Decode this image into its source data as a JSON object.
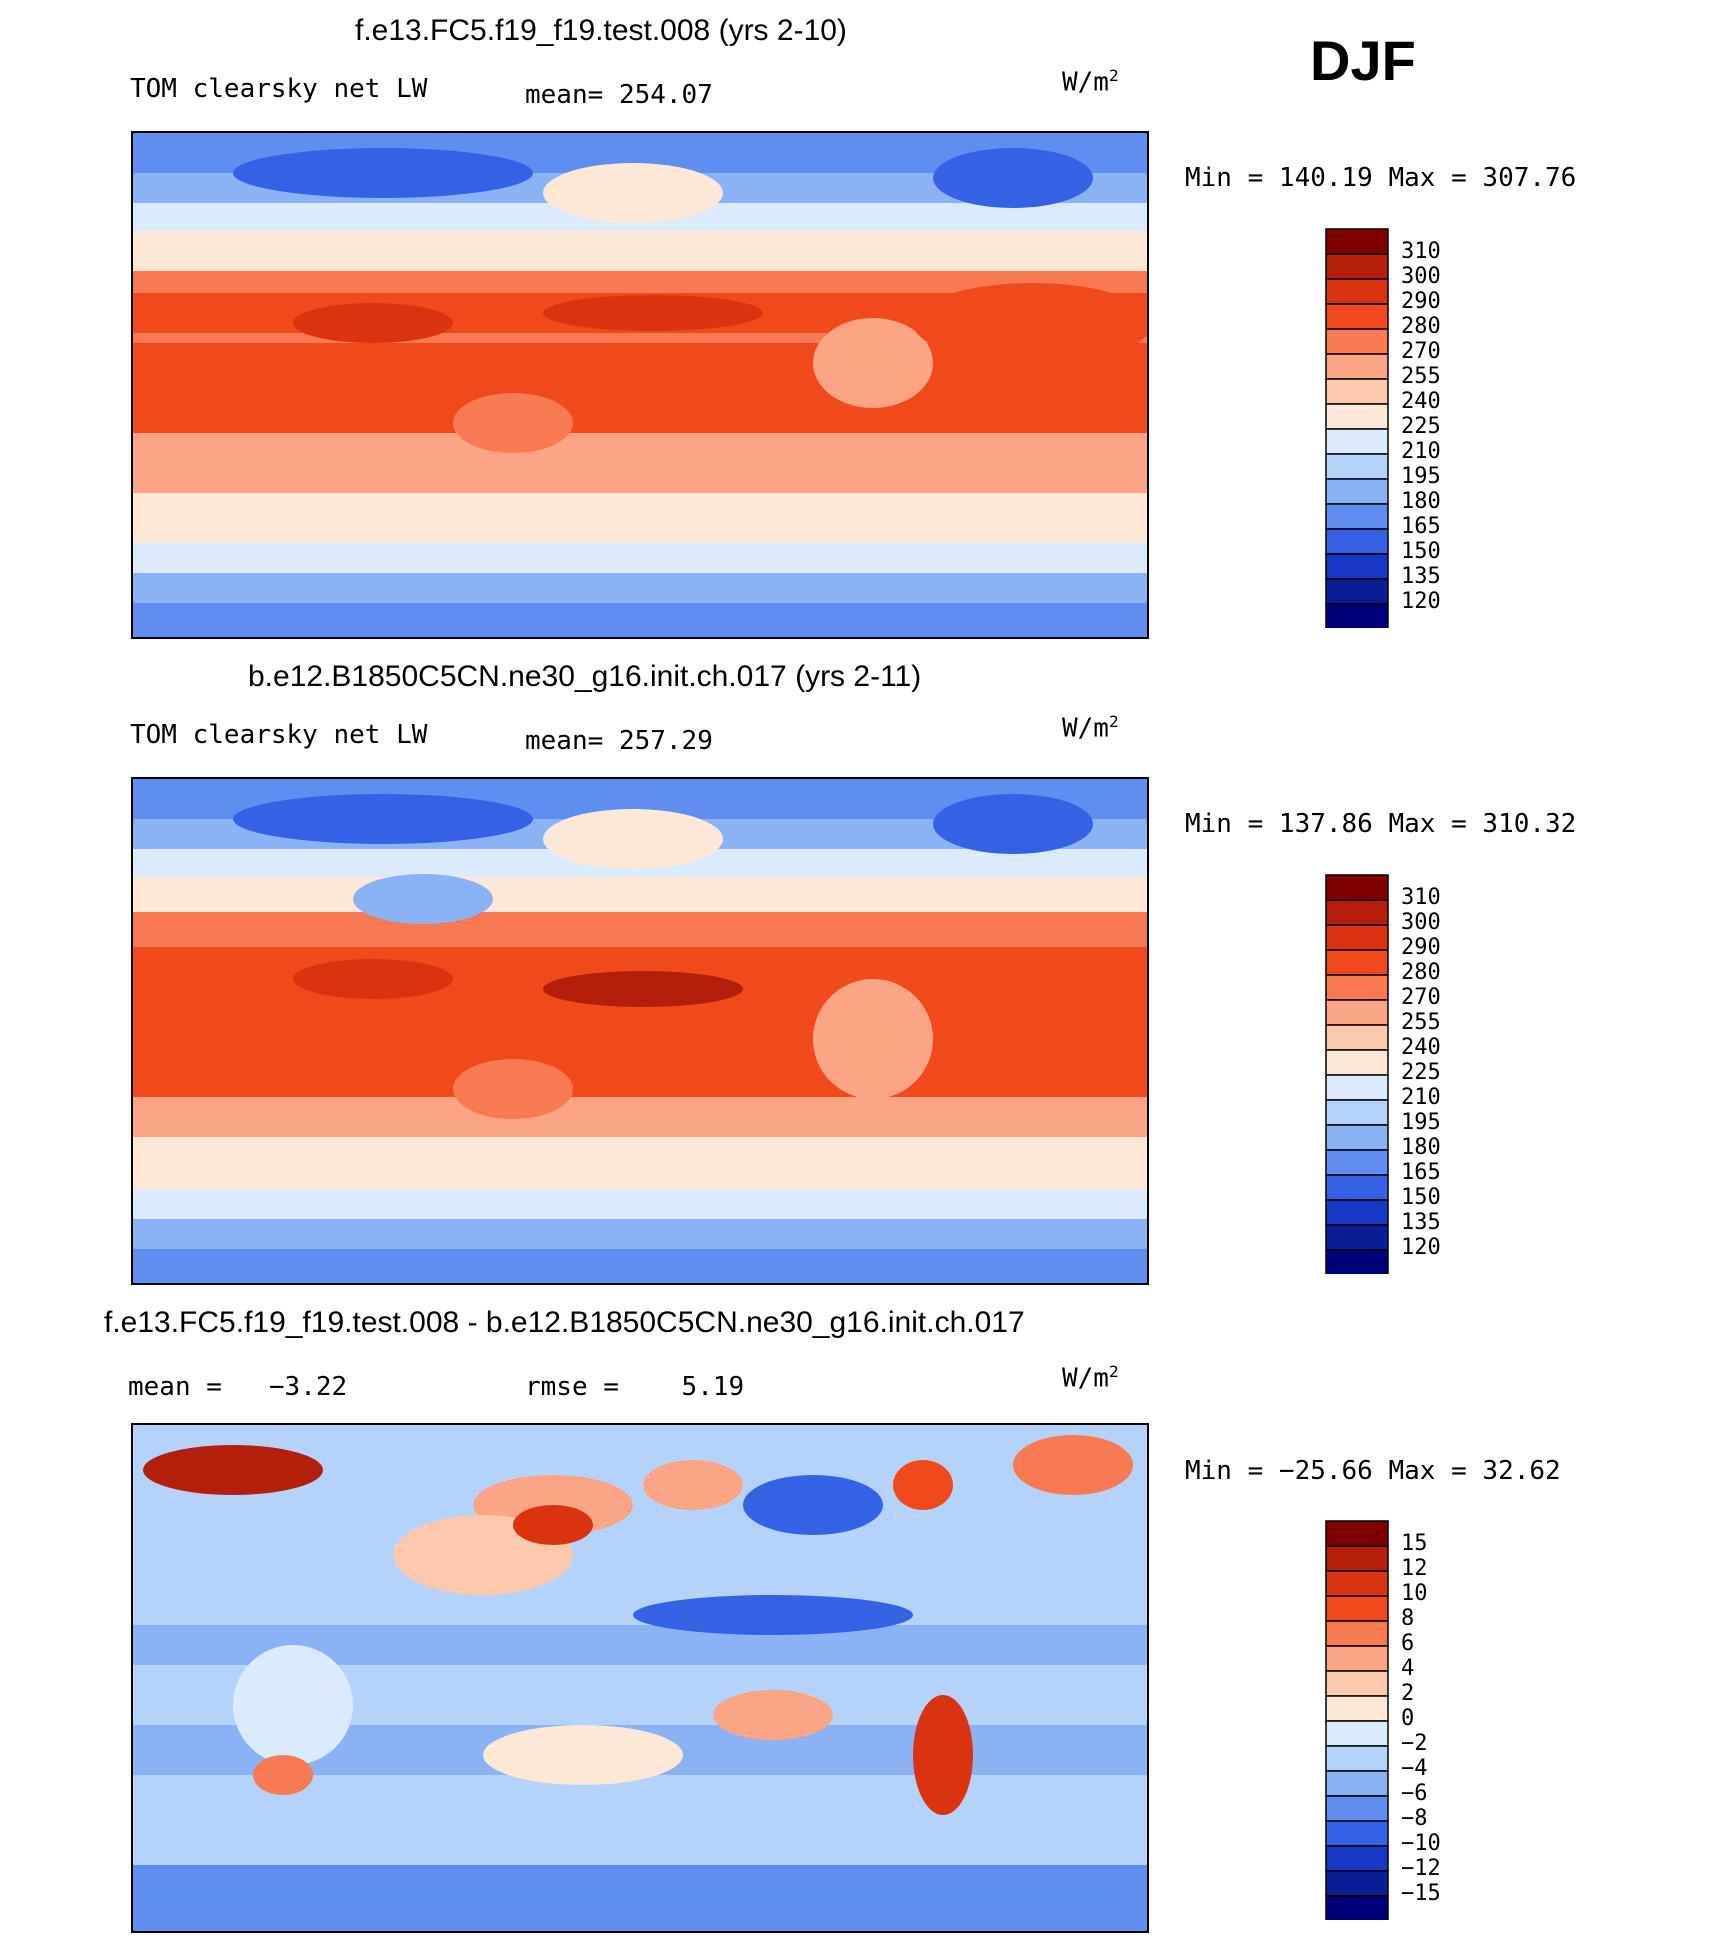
{
  "season": "DJF",
  "units_label": "W/m",
  "units_sup": "2",
  "chart_data": [
    {
      "type": "heatmap",
      "title": "f.e13.FC5.f19_f19.test.008 (yrs 2-10)",
      "variable": "TOM clearsky net LW",
      "mean_label": "mean=",
      "mean_value": "254.07",
      "units": "W/m2",
      "min_max": "Min  =  140.19  Max  =  307.76",
      "min": 140.19,
      "max": 307.76,
      "colorbar": {
        "levels": [
          "310",
          "300",
          "290",
          "280",
          "270",
          "255",
          "240",
          "225",
          "210",
          "195",
          "180",
          "165",
          "150",
          "135",
          "120"
        ],
        "colors": [
          "#7f0000",
          "#b41e0a",
          "#d9340f",
          "#f04a1c",
          "#f87a52",
          "#fca586",
          "#fdc9ae",
          "#fde8d8",
          "#dbeafd",
          "#b5d2fa",
          "#8bb2f5",
          "#5f8ef0",
          "#3562e4",
          "#1638c4",
          "#0a1d95",
          "#00007a"
        ]
      }
    },
    {
      "type": "heatmap",
      "title": "b.e12.B1850C5CN.ne30_g16.init.ch.017 (yrs 2-11)",
      "variable": "TOM clearsky net LW",
      "mean_label": "mean=",
      "mean_value": "257.29",
      "units": "W/m2",
      "min_max": "Min  =  137.86  Max  =  310.32",
      "min": 137.86,
      "max": 310.32,
      "colorbar": {
        "levels": [
          "310",
          "300",
          "290",
          "280",
          "270",
          "255",
          "240",
          "225",
          "210",
          "195",
          "180",
          "165",
          "150",
          "135",
          "120"
        ],
        "colors": [
          "#7f0000",
          "#b41e0a",
          "#d9340f",
          "#f04a1c",
          "#f87a52",
          "#fca586",
          "#fdc9ae",
          "#fde8d8",
          "#dbeafd",
          "#b5d2fa",
          "#8bb2f5",
          "#5f8ef0",
          "#3562e4",
          "#1638c4",
          "#0a1d95",
          "#00007a"
        ]
      }
    },
    {
      "type": "heatmap",
      "title": "f.e13.FC5.f19_f19.test.008 - b.e12.B1850C5CN.ne30_g16.init.ch.017",
      "mean_label": "mean  =",
      "mean_value": "−3.22",
      "rmse_label": "rmse  =",
      "rmse_value": "5.19",
      "units": "W/m2",
      "min_max": "Min  =  −25.66  Max  =    32.62",
      "min": -25.66,
      "max": 32.62,
      "colorbar": {
        "levels": [
          "15",
          "12",
          "10",
          "8",
          "6",
          "4",
          "2",
          "0",
          "−2",
          "−4",
          "−6",
          "−8",
          "−10",
          "−12",
          "−15"
        ],
        "colors": [
          "#7f0000",
          "#b41e0a",
          "#d9340f",
          "#f04a1c",
          "#f87a52",
          "#fca586",
          "#fdc9ae",
          "#fde8d8",
          "#dbeafd",
          "#b5d2fa",
          "#8bb2f5",
          "#5f8ef0",
          "#3562e4",
          "#1638c4",
          "#0a1d95",
          "#00007a"
        ]
      }
    }
  ]
}
